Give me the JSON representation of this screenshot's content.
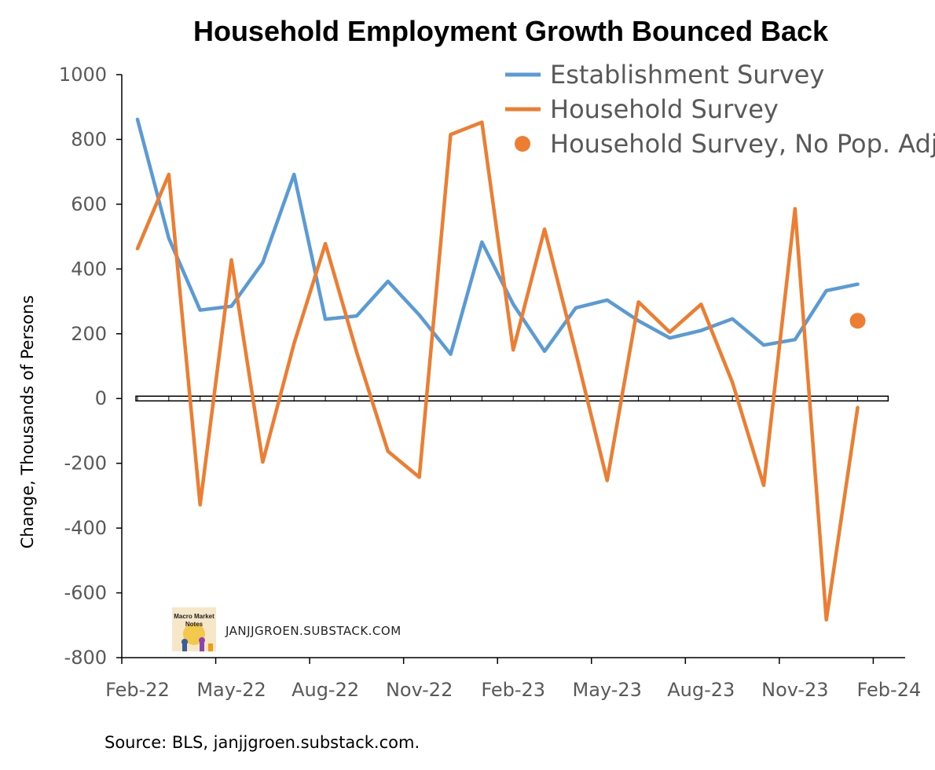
{
  "chart_data": {
    "type": "line",
    "title": "Household Employment Growth Bounced Back",
    "ylabel": "Change, Thousands of Persons",
    "xlabel": "",
    "ylim": [
      -800,
      1000
    ],
    "yticks": [
      1000,
      800,
      600,
      400,
      200,
      0,
      -200,
      -400,
      -600,
      -800
    ],
    "ytick_labels": [
      "1000",
      "800",
      "600",
      "400",
      "200",
      "0",
      "-200",
      "-400",
      "-600",
      "-800"
    ],
    "xtick_labels": [
      "Feb-22",
      "May-22",
      "Aug-22",
      "Nov-22",
      "Feb-23",
      "May-23",
      "Aug-23",
      "Nov-23",
      "Feb-24"
    ],
    "x": [
      "Feb-22",
      "Mar-22",
      "Apr-22",
      "May-22",
      "Jun-22",
      "Jul-22",
      "Aug-22",
      "Sep-22",
      "Oct-22",
      "Nov-22",
      "Dec-22",
      "Jan-23",
      "Feb-23",
      "Mar-23",
      "Apr-23",
      "May-23",
      "Jun-23",
      "Jul-23",
      "Aug-23",
      "Sep-23",
      "Oct-23",
      "Nov-23",
      "Dec-23",
      "Jan-24"
    ],
    "series": [
      {
        "name": "Establishment Survey",
        "color": "#5B9BD5",
        "style": "line",
        "values": [
          862,
          495,
          273,
          285,
          420,
          692,
          245,
          255,
          362,
          258,
          137,
          483,
          291,
          146,
          280,
          304,
          240,
          187,
          210,
          246,
          165,
          182,
          333,
          353
        ]
      },
      {
        "name": "Household Survey",
        "color": "#ED7D31",
        "style": "line",
        "values": [
          463,
          692,
          -328,
          428,
          -196,
          170,
          478,
          143,
          -163,
          -243,
          815,
          853,
          150,
          523,
          141,
          -253,
          298,
          205,
          291,
          50,
          -268,
          586,
          -683,
          -28
        ]
      },
      {
        "name": "Household Survey, No Pop. Adj.",
        "color": "#ED7D31",
        "style": "marker",
        "points": [
          {
            "x": "Jan-24",
            "y": 240
          }
        ]
      }
    ],
    "legend": {
      "placement": "top-right",
      "entries": [
        "Establishment Survey",
        "Household Survey",
        "Household Survey, No Pop. Adj."
      ]
    },
    "grid": false
  },
  "watermark": {
    "logo_text": [
      "Macro Market",
      "Notes"
    ],
    "site": "JANJJGROEN.SUBSTACK.COM"
  },
  "source": "Source: BLS, janjjgroen.substack.com."
}
